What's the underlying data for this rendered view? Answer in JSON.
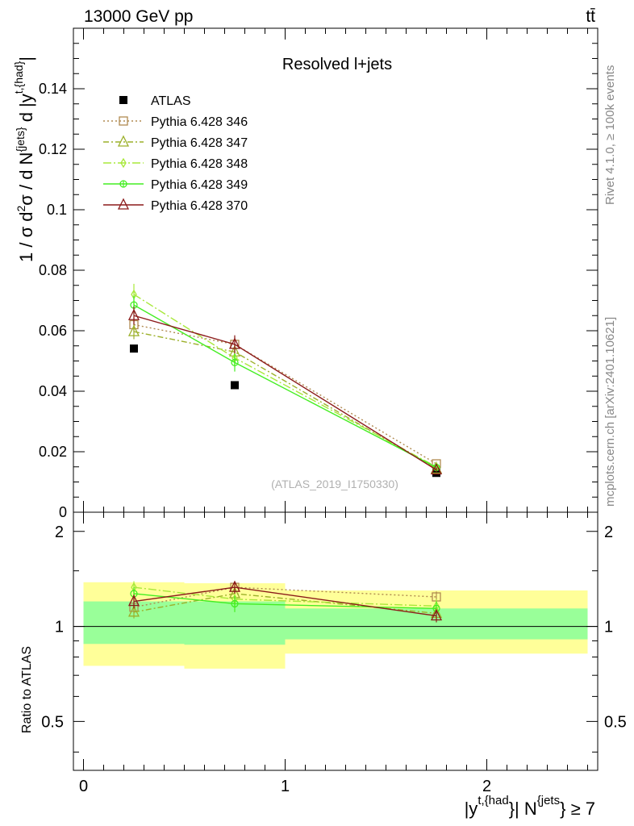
{
  "header": {
    "left": "13000 GeV pp",
    "right": "tt̄"
  },
  "side": {
    "rivet": "Rivet 4.1.0, ≥ 100k events",
    "mcplots": "mcplots.cern.ch [arXiv:2401.10621]"
  },
  "colors": {
    "atlas": "#000000",
    "p346": "#b08a50",
    "p347": "#9cb02a",
    "p348": "#a8e83a",
    "p349": "#44ee22",
    "p370": "#8b1a1a",
    "band_outer": "#ffff99",
    "band_inner": "#99ff99"
  },
  "chart_data": [
    {
      "type": "scatter",
      "title": "Resolved l+jets",
      "watermark": "(ATLAS_2019_I1750330)",
      "ylabel": "1 / σ d²σ / d N^{jets} d |y^{t,{had}}|",
      "xlim": [
        -0.05,
        2.55
      ],
      "ylim": [
        0,
        0.16
      ],
      "yticks": [
        0,
        0.02,
        0.04,
        0.06,
        0.08,
        0.1,
        0.12,
        0.14
      ],
      "ytick_labels": [
        "0",
        "0.02",
        "0.04",
        "0.06",
        "0.08",
        "0.1",
        "0.12",
        "0.14"
      ],
      "x": [
        0.25,
        0.75,
        1.75
      ],
      "series": [
        {
          "name": "ATLAS",
          "key": "atlas",
          "values": [
            0.0541,
            0.042,
            0.013
          ]
        },
        {
          "name": "Pythia 6.428 346",
          "key": "p346",
          "values": [
            0.062,
            0.0555,
            0.016
          ],
          "err": [
            0.0025,
            0.0025,
            0.0007
          ]
        },
        {
          "name": "Pythia 6.428 347",
          "key": "p347",
          "values": [
            0.0597,
            0.053,
            0.0143
          ],
          "err": [
            0.0025,
            0.0025,
            0.0007
          ]
        },
        {
          "name": "Pythia 6.428 348",
          "key": "p348",
          "values": [
            0.072,
            0.051,
            0.015
          ],
          "err": [
            0.0035,
            0.003,
            0.0008
          ]
        },
        {
          "name": "Pythia 6.428 349",
          "key": "p349",
          "values": [
            0.0685,
            0.0495,
            0.0148
          ],
          "err": [
            0.003,
            0.003,
            0.0008
          ]
        },
        {
          "name": "Pythia 6.428 370",
          "key": "p370",
          "values": [
            0.065,
            0.0555,
            0.014
          ],
          "err": [
            0.003,
            0.003,
            0.0007
          ]
        }
      ]
    },
    {
      "type": "scatter",
      "ylabel": "Ratio to ATLAS",
      "xlabel": "|y^{t,{had}}| N^{jets} ≥ 7",
      "xlim": [
        -0.05,
        2.55
      ],
      "ylim": [
        0.35,
        2.3
      ],
      "xticks": [
        0,
        1,
        2
      ],
      "xtick_labels": [
        "0",
        "1",
        "2"
      ],
      "yticks": [
        0.5,
        1,
        2
      ],
      "ytick_labels": [
        "0.5",
        "1",
        "2"
      ],
      "x": [
        0.25,
        0.75,
        1.75
      ],
      "bands": [
        {
          "x0": 0.0,
          "x1": 0.5,
          "outer": [
            0.75,
            1.38
          ],
          "inner": [
            0.88,
            1.2
          ]
        },
        {
          "x0": 0.5,
          "x1": 1.0,
          "outer": [
            0.735,
            1.37
          ],
          "inner": [
            0.875,
            1.2
          ]
        },
        {
          "x0": 1.0,
          "x1": 2.5,
          "outer": [
            0.82,
            1.3
          ],
          "inner": [
            0.91,
            1.14
          ]
        }
      ],
      "series": [
        {
          "name": "Pythia 6.428 346",
          "key": "p346",
          "values": [
            1.15,
            1.33,
            1.24
          ],
          "err": [
            0.05,
            0.05,
            0.05
          ]
        },
        {
          "name": "Pythia 6.428 347",
          "key": "p347",
          "values": [
            1.11,
            1.27,
            1.1
          ],
          "err": [
            0.05,
            0.05,
            0.05
          ]
        },
        {
          "name": "Pythia 6.428 348",
          "key": "p348",
          "values": [
            1.33,
            1.22,
            1.16
          ],
          "err": [
            0.06,
            0.07,
            0.06
          ]
        },
        {
          "name": "Pythia 6.428 349",
          "key": "p349",
          "values": [
            1.27,
            1.18,
            1.14
          ],
          "err": [
            0.06,
            0.07,
            0.06
          ]
        },
        {
          "name": "Pythia 6.428 370",
          "key": "p370",
          "values": [
            1.2,
            1.33,
            1.08
          ],
          "err": [
            0.06,
            0.06,
            0.05
          ]
        }
      ]
    }
  ]
}
